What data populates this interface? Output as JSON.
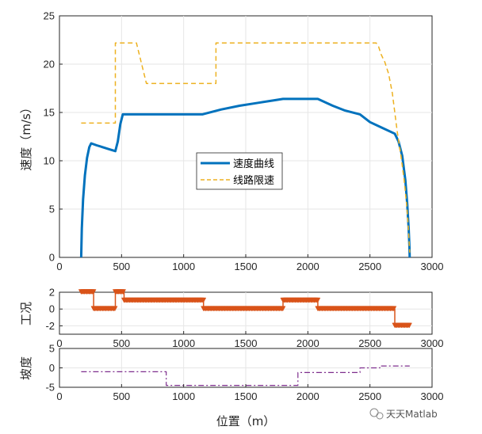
{
  "watermark": "天天Matlab",
  "xlabel_shared": "位置（m）",
  "colors": {
    "speed": "#0072BD",
    "limit": "#EDB120",
    "condition": "#D95319",
    "slope": "#7E2F8E",
    "grid": "#E6E6E6",
    "axis": "#262626"
  },
  "chart_data": [
    {
      "type": "line",
      "ylabel": "速度（m/s）",
      "xlim": [
        0,
        3000
      ],
      "ylim": [
        0,
        25
      ],
      "xticks": [
        0,
        500,
        1000,
        1500,
        2000,
        2500,
        3000
      ],
      "yticks": [
        0,
        5,
        10,
        15,
        20,
        25
      ],
      "grid": true,
      "legend_position": "center",
      "series": [
        {
          "name": "速度曲线",
          "style": "solid",
          "points": [
            [
              175,
              0
            ],
            [
              180,
              3
            ],
            [
              190,
              6
            ],
            [
              205,
              8.5
            ],
            [
              222,
              10.3
            ],
            [
              240,
              11.4
            ],
            [
              255,
              11.8
            ],
            [
              300,
              11.6
            ],
            [
              350,
              11.4
            ],
            [
              400,
              11.2
            ],
            [
              450,
              11.0
            ],
            [
              470,
              12
            ],
            [
              490,
              13.8
            ],
            [
              510,
              14.8
            ],
            [
              600,
              14.8
            ],
            [
              800,
              14.8
            ],
            [
              1000,
              14.8
            ],
            [
              1150,
              14.8
            ],
            [
              1300,
              15.3
            ],
            [
              1450,
              15.7
            ],
            [
              1600,
              16.0
            ],
            [
              1750,
              16.3
            ],
            [
              1800,
              16.4
            ],
            [
              2080,
              16.4
            ],
            [
              2200,
              15.7
            ],
            [
              2300,
              15.2
            ],
            [
              2420,
              14.8
            ],
            [
              2500,
              14.0
            ],
            [
              2600,
              13.4
            ],
            [
              2700,
              12.8
            ],
            [
              2730,
              12.0
            ],
            [
              2760,
              10.5
            ],
            [
              2785,
              8.0
            ],
            [
              2800,
              5.5
            ],
            [
              2812,
              3.0
            ],
            [
              2818,
              1.0
            ],
            [
              2820,
              0
            ]
          ]
        },
        {
          "name": "线路限速",
          "style": "dashed",
          "points": [
            [
              175,
              13.9
            ],
            [
              450,
              13.9
            ],
            [
              450,
              22.2
            ],
            [
              620,
              22.2
            ],
            [
              700,
              18.0
            ],
            [
              1260,
              18.0
            ],
            [
              1260,
              22.2
            ],
            [
              2550,
              22.2
            ],
            [
              2570,
              21.8
            ],
            [
              2590,
              21.0
            ],
            [
              2620,
              20.2
            ],
            [
              2650,
              19.0
            ],
            [
              2680,
              17.0
            ],
            [
              2700,
              15.0
            ],
            [
              2720,
              13.0
            ],
            [
              2750,
              10.5
            ],
            [
              2775,
              8.0
            ],
            [
              2795,
              5.5
            ],
            [
              2810,
              3.0
            ],
            [
              2820,
              0.5
            ]
          ]
        }
      ]
    },
    {
      "type": "line",
      "ylabel": "工况",
      "xlim": [
        0,
        3000
      ],
      "ylim": [
        -3,
        2
      ],
      "xticks": [
        0,
        500,
        1000,
        1500,
        2000,
        2500,
        3000
      ],
      "yticks": [
        -2,
        0,
        2
      ],
      "grid": true,
      "series": [
        {
          "style": "solid-triangle-markers",
          "points": [
            [
              175,
              2
            ],
            [
              275,
              2
            ],
            [
              275,
              0
            ],
            [
              450,
              0
            ],
            [
              450,
              2
            ],
            [
              520,
              2
            ],
            [
              520,
              1
            ],
            [
              1160,
              1
            ],
            [
              1160,
              0
            ],
            [
              1800,
              0
            ],
            [
              1800,
              1
            ],
            [
              2080,
              1
            ],
            [
              2080,
              0
            ],
            [
              2700,
              0
            ],
            [
              2700,
              -2
            ],
            [
              2820,
              -2
            ]
          ]
        }
      ]
    },
    {
      "type": "line",
      "ylabel": "坡度",
      "xlim": [
        0,
        3000
      ],
      "ylim": [
        -5,
        5
      ],
      "xticks": [
        0,
        500,
        1000,
        1500,
        2000,
        2500,
        3000
      ],
      "yticks": [
        -5,
        0,
        5
      ],
      "grid": true,
      "series": [
        {
          "style": "dash-dot",
          "points": [
            [
              175,
              -1
            ],
            [
              860,
              -1
            ],
            [
              860,
              -4.5
            ],
            [
              1920,
              -4.5
            ],
            [
              1920,
              -1.2
            ],
            [
              2420,
              -1.2
            ],
            [
              2420,
              0
            ],
            [
              2580,
              0
            ],
            [
              2580,
              0.5
            ],
            [
              2820,
              0.5
            ]
          ]
        }
      ]
    }
  ]
}
